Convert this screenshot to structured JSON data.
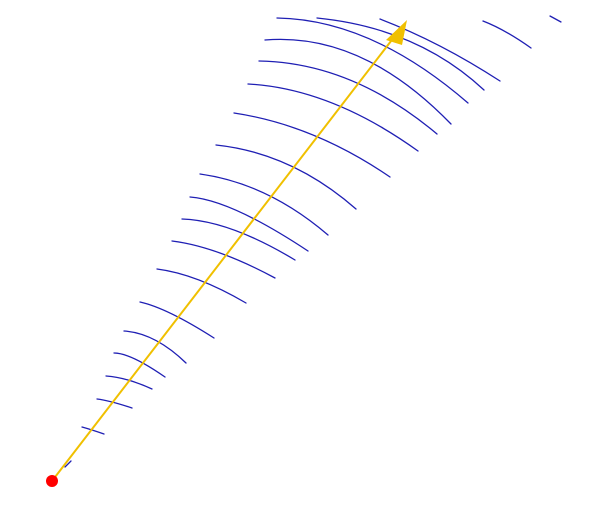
{
  "diagram": {
    "description_visible_text": "",
    "colors": {
      "background": "#ffffff",
      "wavefront_lines": "#1f1fb4",
      "ray_arrow": "#f0c000",
      "source_point": "#ff0000"
    },
    "elements": {
      "source": {
        "icon": "red-dot"
      },
      "ray": {
        "icon": "yellow-arrow"
      },
      "wavefronts": {
        "count": 20,
        "icon": "blue-arc"
      }
    }
  }
}
